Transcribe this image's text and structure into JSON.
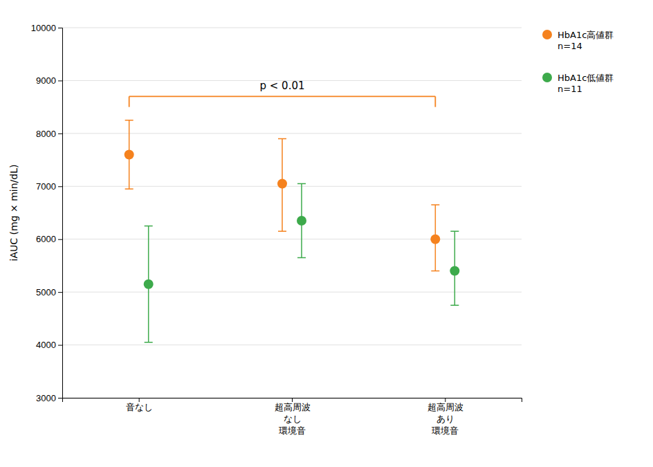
{
  "chart_data": {
    "type": "errorbar",
    "ylabel": "iAUC (mg × min/dL)",
    "categories": [
      "音なし",
      "超高周波\nなし\n環境音",
      "超高周波\nあり\n環境音"
    ],
    "series": [
      {
        "name": "HbA1c高値群\nn=14",
        "color": "#F5821E",
        "marker": "circle",
        "values": [
          7600,
          7050,
          6000
        ],
        "lower": [
          6950,
          6150,
          5400
        ],
        "upper": [
          8250,
          7900,
          6650
        ]
      },
      {
        "name": "HbA1c低値群\nn=11",
        "color": "#3DAA4B",
        "marker": "circle",
        "values": [
          5150,
          6350,
          5400
        ],
        "lower": [
          4050,
          5650,
          4750
        ],
        "upper": [
          6250,
          7050,
          6150
        ]
      }
    ],
    "ylim": [
      3000,
      10000
    ],
    "yticks": [
      3000,
      4000,
      5000,
      6000,
      7000,
      8000,
      9000,
      10000
    ],
    "grid": true,
    "legend": "right",
    "annotations": [
      {
        "text": "p < 0.01",
        "from": 0,
        "to": 2,
        "series": 0,
        "y": 8700,
        "y_end": 8500,
        "color": "#F5821E"
      }
    ]
  }
}
